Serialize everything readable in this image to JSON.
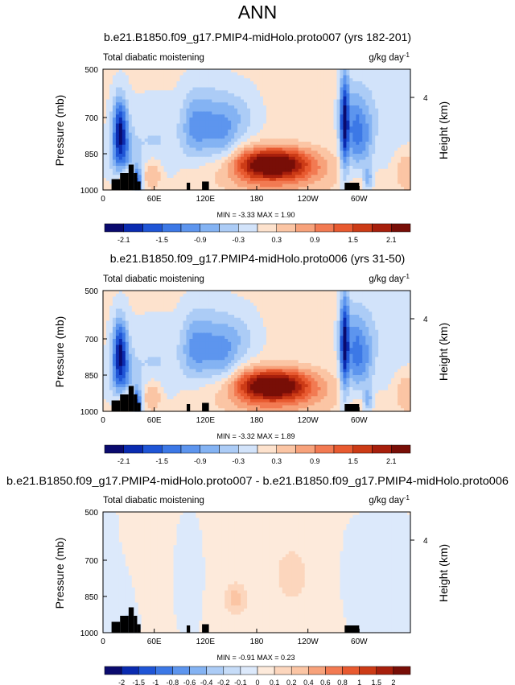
{
  "main_title": "ANN",
  "chart_data": [
    {
      "type": "heatmap",
      "title": "b.e21.B1850.f09_g17.PMIP4-midHolo.proto007 (yrs 182-201)",
      "left_label": "Total diabatic moistening",
      "units_base": "g/kg day",
      "units_exp": "-1",
      "ylabel": "Pressure (mb)",
      "ylabel_right": "Height (km)",
      "yticks": [
        500,
        700,
        850,
        1000
      ],
      "ylim": [
        1000,
        500
      ],
      "yticks_right": [
        4
      ],
      "xticks": [
        "0",
        "60E",
        "120E",
        "180",
        "120W",
        "60W"
      ],
      "xlim": [
        0,
        360
      ],
      "stats": "MIN =  -3.33  MAX =  1.90",
      "levels": [
        "-2.1",
        "-1.5",
        "-0.9",
        "-0.3",
        "0.3",
        "0.9",
        "1.5",
        "2.1"
      ],
      "colors": [
        "#0a0a6e",
        "#0a2bb0",
        "#1f55d6",
        "#3c78e6",
        "#5d95ee",
        "#84b3f3",
        "#acccf6",
        "#d2e3fa",
        "#fde2cd",
        "#fbc5a4",
        "#f7a27b",
        "#f27a52",
        "#e85a30",
        "#cc3b16",
        "#a71f0c",
        "#780e07"
      ],
      "value_step": 0.3
    },
    {
      "type": "heatmap",
      "title": "b.e21.B1850.f09_g17.PMIP4-midHolo.proto006 (yrs 31-50)",
      "left_label": "Total diabatic moistening",
      "units_base": "g/kg day",
      "units_exp": "-1",
      "ylabel": "Pressure (mb)",
      "ylabel_right": "Height (km)",
      "yticks": [
        500,
        700,
        850,
        1000
      ],
      "ylim": [
        1000,
        500
      ],
      "yticks_right": [
        4
      ],
      "xticks": [
        "0",
        "60E",
        "120E",
        "180",
        "120W",
        "60W"
      ],
      "xlim": [
        0,
        360
      ],
      "stats": "MIN =  -3.32  MAX =  1.89",
      "levels": [
        "-2.1",
        "-1.5",
        "-0.9",
        "-0.3",
        "0.3",
        "0.9",
        "1.5",
        "2.1"
      ],
      "colors": [
        "#0a0a6e",
        "#0a2bb0",
        "#1f55d6",
        "#3c78e6",
        "#5d95ee",
        "#84b3f3",
        "#acccf6",
        "#d2e3fa",
        "#fde2cd",
        "#fbc5a4",
        "#f7a27b",
        "#f27a52",
        "#e85a30",
        "#cc3b16",
        "#a71f0c",
        "#780e07"
      ],
      "value_step": 0.3
    },
    {
      "type": "heatmap",
      "title": "b.e21.B1850.f09_g17.PMIP4-midHolo.proto007 - b.e21.B1850.f09_g17.PMIP4-midHolo.proto006",
      "left_label": "Total diabatic moistening",
      "units_base": "g/kg day",
      "units_exp": "-1",
      "ylabel": "Pressure (mb)",
      "ylabel_right": "Height (km)",
      "yticks": [
        500,
        700,
        850,
        1000
      ],
      "ylim": [
        1000,
        500
      ],
      "yticks_right": [
        4
      ],
      "xticks": [
        "0",
        "60E",
        "120E",
        "180",
        "120W",
        "60W"
      ],
      "xlim": [
        0,
        360
      ],
      "stats": "MIN =  -0.91  MAX =  0.23",
      "levels": [
        "-2",
        "-1.5",
        "-1",
        "-0.8",
        "-0.6",
        "-0.4",
        "-0.2",
        "-0.1",
        "0",
        "0.1",
        "0.2",
        "0.4",
        "0.6",
        "0.8",
        "1",
        "1.5",
        "2"
      ],
      "colors": [
        "#0a0a6e",
        "#0a2bb0",
        "#1f55d6",
        "#3c78e6",
        "#5d95ee",
        "#84b3f3",
        "#acccf6",
        "#c6dcf8",
        "#dce9fb",
        "#fdeadb",
        "#fcd6bd",
        "#fbc5a4",
        "#f7a27b",
        "#f27a52",
        "#e85a30",
        "#cc3b16",
        "#a71f0c",
        "#780e07"
      ],
      "value_step": 0.1
    }
  ]
}
